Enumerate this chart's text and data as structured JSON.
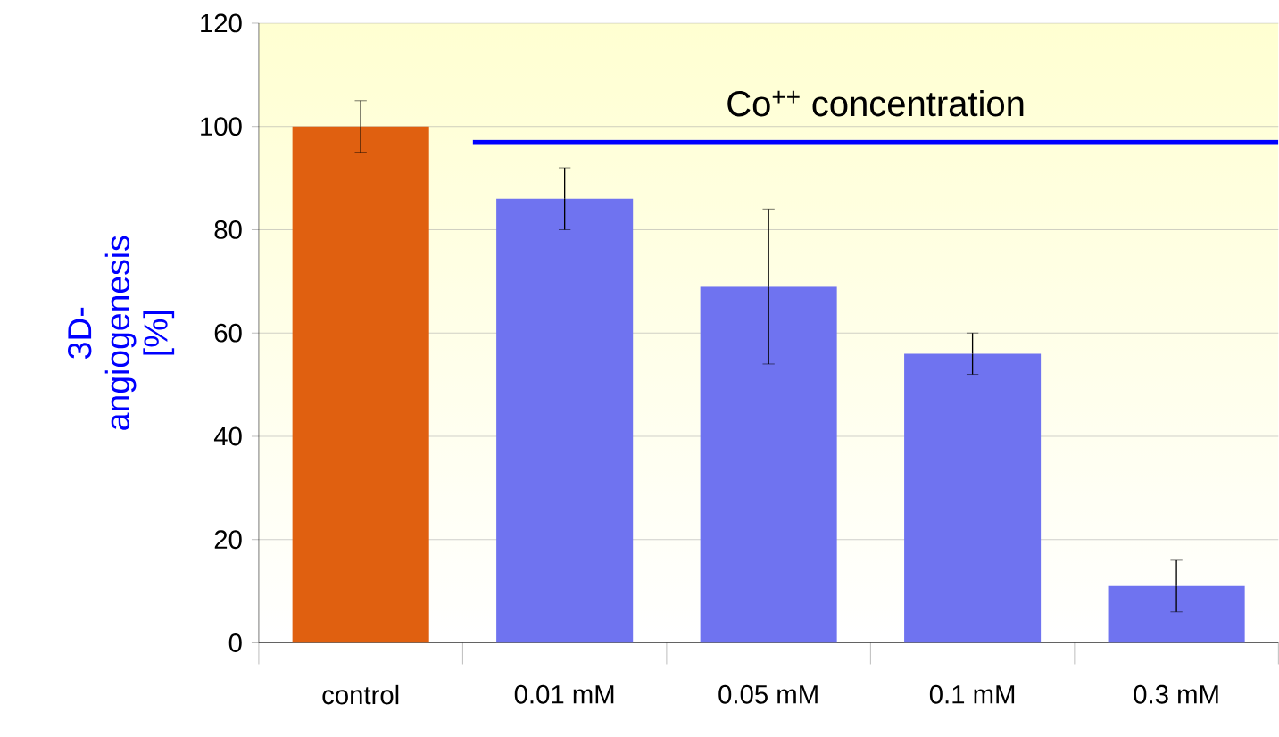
{
  "chart_data": {
    "type": "bar",
    "ylabel": "3D-angiogenesis [%]",
    "categories": [
      "control",
      "0.01 mM",
      "0.05 mM",
      "0.1 mM",
      "0.3 mM"
    ],
    "values": [
      100,
      86,
      69,
      56,
      11
    ],
    "errors": [
      5,
      6,
      15,
      4,
      5
    ],
    "colors": [
      "#e06010",
      "#6f73f0",
      "#6f73f0",
      "#6f73f0",
      "#6f73f0"
    ],
    "ylim": [
      0,
      120
    ],
    "yticks": [
      0,
      20,
      40,
      60,
      80,
      100,
      120
    ],
    "grid": "y",
    "ref_lines": [
      {
        "axis": "y",
        "value": 97,
        "label": "Co$^{++}$ concentration",
        "color": "#0000ff"
      }
    ]
  }
}
